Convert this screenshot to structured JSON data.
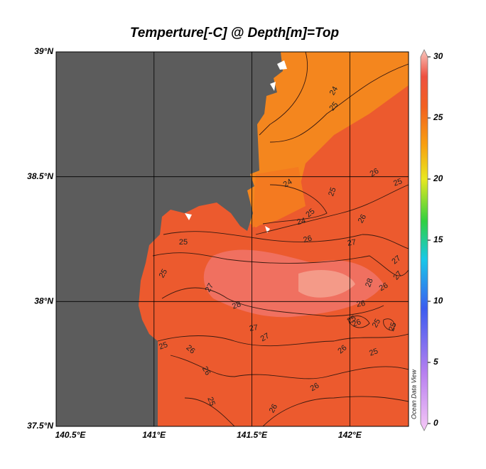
{
  "chart_data": {
    "type": "map",
    "title": "Temperture[-C] @ Depth[m]=Top",
    "xlim": [
      140.5,
      142.3
    ],
    "ylim": [
      37.5,
      39
    ],
    "xticks": [
      {
        "value": 140.5,
        "label": "140.5°E"
      },
      {
        "value": 141,
        "label": "141°E"
      },
      {
        "value": 141.5,
        "label": "141.5°E"
      },
      {
        "value": 142,
        "label": "142°E"
      }
    ],
    "yticks": [
      {
        "value": 37.5,
        "label": "37.5°N"
      },
      {
        "value": 38,
        "label": "38°N"
      },
      {
        "value": 38.5,
        "label": "38.5°N"
      },
      {
        "value": 39,
        "label": "39°N"
      }
    ],
    "grid": true,
    "colorbar": {
      "range": [
        0,
        30
      ],
      "ticks": [
        0,
        5,
        10,
        15,
        20,
        25,
        30
      ]
    },
    "contour_labels": [
      24,
      25,
      26,
      25,
      24,
      25,
      25,
      24,
      26,
      26,
      27,
      25,
      27,
      27,
      25,
      27,
      28,
      26,
      28,
      26,
      25,
      26,
      25,
      25,
      27,
      27,
      25,
      26,
      26,
      25,
      26,
      26,
      25,
      26
    ],
    "watermark": "Ocean Data View"
  }
}
